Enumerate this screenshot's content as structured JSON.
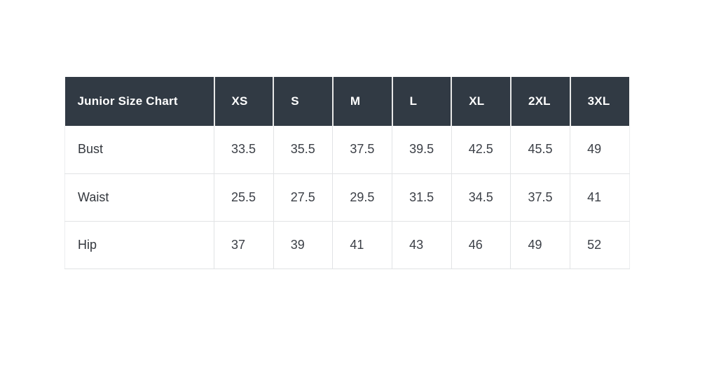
{
  "chart_data": {
    "type": "table",
    "title": "Junior Size Chart",
    "columns": [
      "Junior Size Chart",
      "XS",
      "S",
      "M",
      "L",
      "XL",
      "2XL",
      "3XL"
    ],
    "rows": [
      {
        "label": "Bust",
        "values": [
          33.5,
          35.5,
          37.5,
          39.5,
          42.5,
          45.5,
          49
        ]
      },
      {
        "label": "Waist",
        "values": [
          25.5,
          27.5,
          29.5,
          31.5,
          34.5,
          37.5,
          41
        ]
      },
      {
        "label": "Hip",
        "values": [
          37,
          39,
          41,
          43,
          46,
          49,
          52
        ]
      }
    ]
  },
  "table": {
    "header": {
      "title": "Junior Size Chart",
      "sizes": [
        "XS",
        "S",
        "M",
        "L",
        "XL",
        "2XL",
        "3XL"
      ]
    },
    "body": {
      "bust": {
        "label": "Bust",
        "xs": "33.5",
        "s": "35.5",
        "m": "37.5",
        "l": "39.5",
        "xl": "42.5",
        "xxl": "45.5",
        "xxxl": "49"
      },
      "waist": {
        "label": "Waist",
        "xs": "25.5",
        "s": "27.5",
        "m": "29.5",
        "l": "31.5",
        "xl": "34.5",
        "xxl": "37.5",
        "xxxl": "41"
      },
      "hip": {
        "label": "Hip",
        "xs": "37",
        "s": "39",
        "m": "41",
        "l": "43",
        "xl": "46",
        "xxl": "49",
        "xxxl": "52"
      }
    }
  },
  "colors": {
    "header_background": "#313a44",
    "header_text": "#ffffff",
    "body_text": "#3b3f46",
    "cell_border": "#e1e3e5",
    "page_background": "#ffffff"
  }
}
